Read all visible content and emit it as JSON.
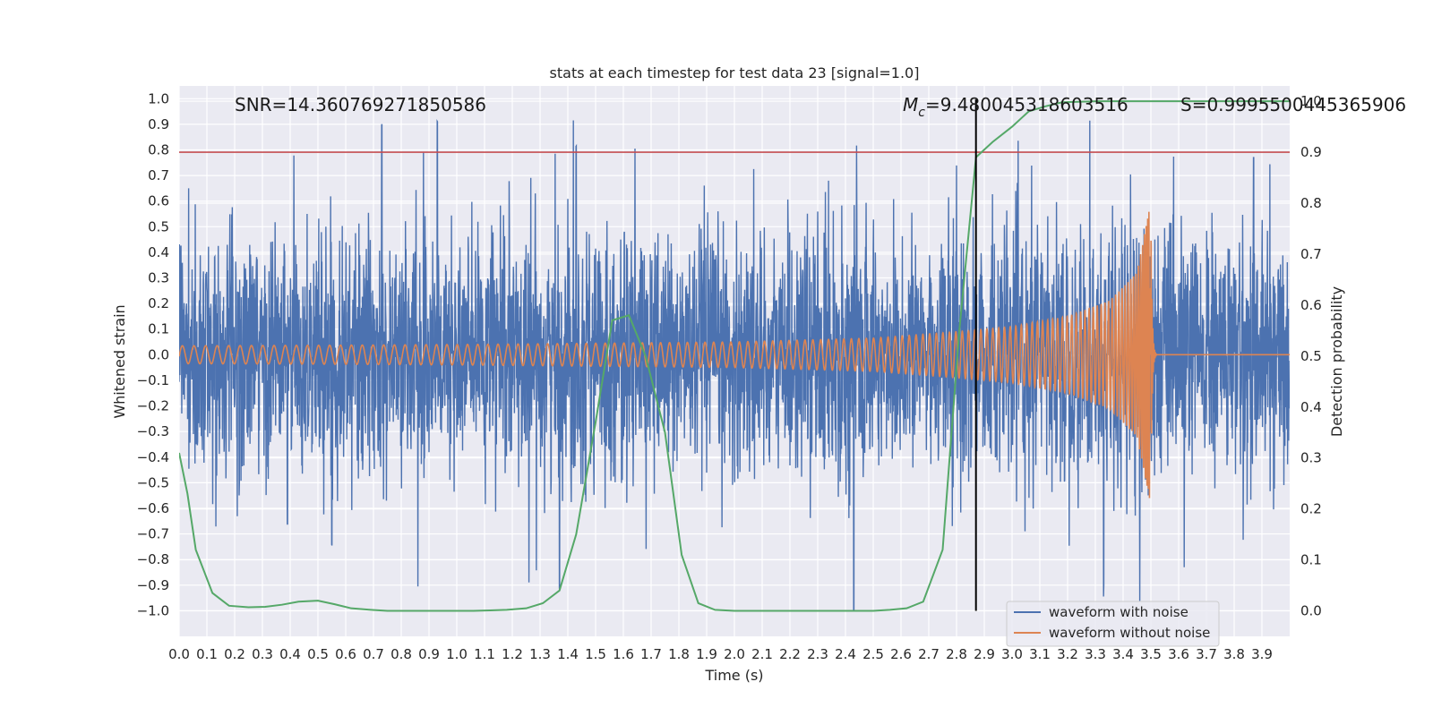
{
  "chart_data": {
    "type": "line",
    "title": "stats at each timestep for test data 23 [signal=1.0]",
    "xlabel": "Time (s)",
    "ylabel": "Whitened strain",
    "ylabel_right": "Detection probability",
    "xlim": [
      0.0,
      4.0
    ],
    "ylim": [
      -1.1,
      1.05
    ],
    "ylim_right": [
      -0.05,
      1.03
    ],
    "x_ticks": [
      "0.0",
      "0.1",
      "0.2",
      "0.3",
      "0.4",
      "0.5",
      "0.6",
      "0.7",
      "0.8",
      "0.9",
      "1.0",
      "1.1",
      "1.2",
      "1.3",
      "1.4",
      "1.5",
      "1.6",
      "1.7",
      "1.8",
      "1.9",
      "2.0",
      "2.1",
      "2.2",
      "2.3",
      "2.4",
      "2.5",
      "2.6",
      "2.7",
      "2.8",
      "2.9",
      "3.0",
      "3.1",
      "3.2",
      "3.3",
      "3.4",
      "3.5",
      "3.6",
      "3.7",
      "3.8",
      "3.9"
    ],
    "y_ticks": [
      "1.0",
      "0.9",
      "0.8",
      "0.7",
      "0.6",
      "0.5",
      "0.4",
      "0.3",
      "0.2",
      "0.1",
      "0.0",
      "−0.1",
      "−0.2",
      "−0.3",
      "−0.4",
      "−0.5",
      "−0.6",
      "−0.7",
      "−0.8",
      "−0.9",
      "−1.0"
    ],
    "y_right_ticks": [
      "1.0",
      "0.9",
      "0.8",
      "0.7",
      "0.6",
      "0.5",
      "0.4",
      "0.3",
      "0.2",
      "0.1",
      "0.0"
    ],
    "threshold_line_right": 0.9,
    "merger_time_marker": 2.87,
    "annotations": {
      "snr": "SNR=14.360769271850586",
      "mc_symbol": "M",
      "mc_sub": "c",
      "mc_value": "=9.480045318603516",
      "s": "S=0.9995500445365906"
    },
    "legend": {
      "placement": "lower-right",
      "entries": [
        {
          "label": "waveform with noise",
          "color": "#4c72b0"
        },
        {
          "label": "waveform without noise",
          "color": "#dd8452"
        }
      ]
    },
    "series": [
      {
        "name": "waveform with noise",
        "axis": "left",
        "color": "#4c72b0",
        "noise_sigma": 0.3,
        "peaks": [
          [
            0.73,
            0.89
          ],
          [
            0.93,
            0.89
          ],
          [
            0.88,
            0.79
          ],
          [
            1.42,
            0.93
          ],
          [
            1.43,
            0.79
          ],
          [
            2.43,
            -1.0
          ],
          [
            2.44,
            0.83
          ],
          [
            3.28,
            0.85
          ],
          [
            3.87,
            0.77
          ],
          [
            0.86,
            -0.91
          ],
          [
            1.26,
            -0.91
          ],
          [
            1.37,
            -0.92
          ],
          [
            3.33,
            -0.86
          ],
          [
            3.62,
            -0.83
          ],
          [
            0.55,
            -0.75
          ],
          [
            0.39,
            -0.67
          ]
        ]
      },
      {
        "name": "waveform without noise",
        "axis": "left",
        "color": "#dd8452",
        "description_points": {
          "t": [
            0.0,
            0.5,
            1.0,
            1.5,
            2.0,
            2.5,
            2.8,
            3.0,
            3.2,
            3.35,
            3.45,
            3.5,
            3.52,
            4.0
          ],
          "amplitude": [
            0.035,
            0.037,
            0.04,
            0.045,
            0.05,
            0.065,
            0.09,
            0.11,
            0.15,
            0.21,
            0.32,
            0.6,
            0.0,
            0.0
          ]
        },
        "note": "chirp: frequency rises toward merger at ~3.5 s"
      },
      {
        "name": "detection probability",
        "axis": "right",
        "color": "#55a868",
        "x": [
          0.0,
          0.03,
          0.06,
          0.12,
          0.18,
          0.25,
          0.31,
          0.37,
          0.43,
          0.5,
          0.56,
          0.62,
          0.69,
          0.75,
          0.81,
          0.87,
          0.93,
          1.0,
          1.06,
          1.12,
          1.18,
          1.25,
          1.31,
          1.37,
          1.43,
          1.5,
          1.56,
          1.62,
          1.68,
          1.75,
          1.81,
          1.87,
          1.93,
          2.0,
          2.06,
          2.12,
          2.18,
          2.25,
          2.31,
          2.37,
          2.43,
          2.5,
          2.56,
          2.62,
          2.68,
          2.75,
          2.81,
          2.87,
          2.93,
          3.0,
          3.06,
          3.12,
          3.18,
          3.25,
          3.31,
          3.37,
          3.43,
          3.5,
          3.56,
          3.62,
          3.68,
          3.75,
          3.81,
          3.87,
          3.93,
          4.0
        ],
        "values": [
          0.31,
          0.23,
          0.12,
          0.035,
          0.01,
          0.007,
          0.008,
          0.012,
          0.018,
          0.02,
          0.013,
          0.005,
          0.002,
          0.0,
          0.0,
          0.0,
          0.0,
          0.0,
          0.0,
          0.001,
          0.002,
          0.005,
          0.015,
          0.04,
          0.15,
          0.37,
          0.57,
          0.58,
          0.5,
          0.35,
          0.11,
          0.015,
          0.002,
          0.0,
          0.0,
          0.0,
          0.0,
          0.0,
          0.0,
          0.0,
          0.0,
          0.0,
          0.002,
          0.005,
          0.018,
          0.12,
          0.55,
          0.89,
          0.92,
          0.95,
          0.98,
          0.99,
          0.998,
          0.999,
          1.0,
          1.0,
          1.0,
          1.0,
          1.0,
          1.0,
          1.0,
          1.0,
          1.0,
          1.0,
          1.0,
          1.0
        ]
      }
    ]
  }
}
